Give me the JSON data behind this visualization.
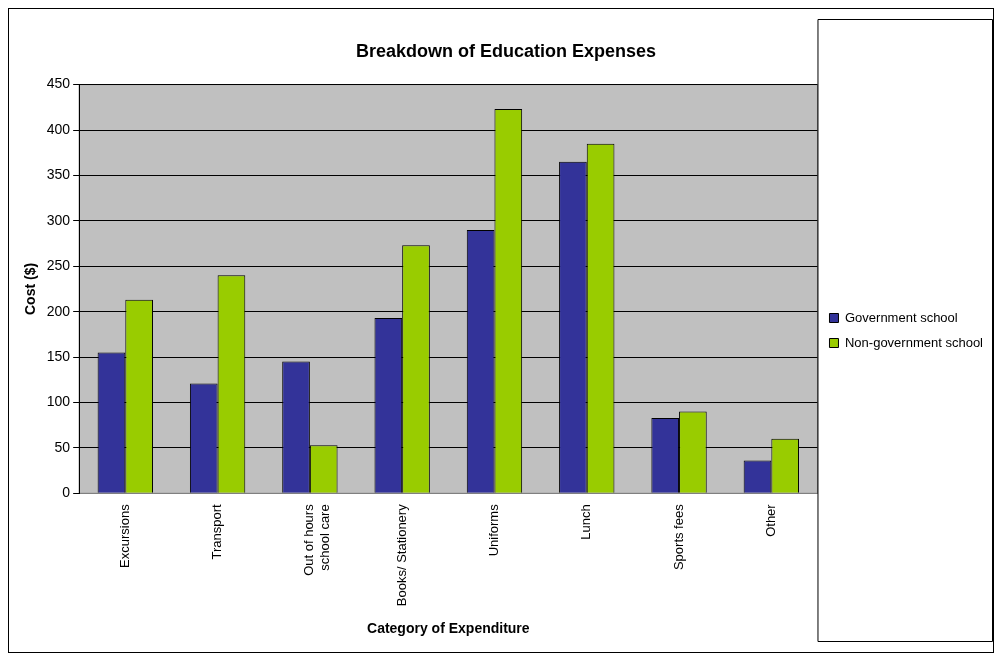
{
  "chart_data": {
    "type": "bar",
    "title": "Breakdown of Education Expenses",
    "xlabel": "Category of Expenditure",
    "ylabel": "Cost ($)",
    "categories": [
      "Excursions",
      "Transport",
      "Out of hours school care",
      "Books/ Stationery",
      "Uniforms",
      "Lunch",
      "Sports fees",
      "Other"
    ],
    "series": [
      {
        "name": "Government school",
        "color": "#333399",
        "values": [
          155,
          121,
          145,
          193,
          290,
          365,
          83,
          36
        ]
      },
      {
        "name": "Non-government school",
        "color": "#99cc00",
        "values": [
          213,
          240,
          53,
          273,
          423,
          385,
          90,
          60
        ]
      }
    ],
    "ylim": [
      0,
      450
    ],
    "yticks": [
      0,
      50,
      100,
      150,
      200,
      250,
      300,
      350,
      400,
      450
    ],
    "grid": "y",
    "legend": "right"
  }
}
